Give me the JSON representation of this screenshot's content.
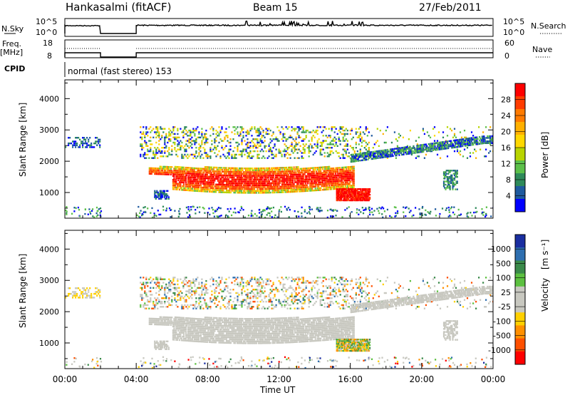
{
  "header": {
    "station": "Hankasalmi (fitACF)",
    "beam": "Beam 15",
    "date": "27/Feb/2011"
  },
  "strips": {
    "noise": {
      "left_label": "N.Sky",
      "left_ticks": [
        "10^5",
        "10^0"
      ],
      "right_label": "N.Search",
      "right_ticks": [
        "10^5",
        "10^0"
      ]
    },
    "freq": {
      "left_label_1": "Freq.",
      "left_label_2": "[MHz]",
      "left_ticks": [
        "18",
        "8"
      ],
      "right_label": "Nave",
      "right_ticks": [
        "60",
        "0"
      ]
    },
    "cpid": {
      "label": "CPID",
      "mode_text": "normal (fast stereo) 153"
    }
  },
  "colorbars": {
    "power": {
      "label": "Power [dB]",
      "ticks": [
        "28",
        "24",
        "20",
        "16",
        "12",
        "8",
        "4"
      ],
      "colors": [
        "#ff0000",
        "#ff3c00",
        "#ff7a00",
        "#ffb000",
        "#ffd800",
        "#b8d400",
        "#5cc04a",
        "#2e8a5a",
        "#1e5a9e",
        "#0000ff"
      ]
    },
    "velocity": {
      "label_main": "Velocity",
      "label_units": "[m s⁻¹]",
      "ticks": [
        "1000",
        "500",
        "100",
        "25",
        "-25",
        "-100",
        "-500",
        "-1000"
      ],
      "colors": [
        "#1a2ea0",
        "#2e6fb0",
        "#3a8a4a",
        "#5cc040",
        "#c8c8c0",
        "#c8c8c0",
        "#ffd000",
        "#ff9000",
        "#ff5000",
        "#ff0000"
      ]
    }
  },
  "chart_data": {
    "type": "heatmap",
    "xlabel": "Time UT",
    "ylabel": "Slant Range [km]",
    "x_ticks": [
      "00:00",
      "04:00",
      "08:00",
      "12:00",
      "16:00",
      "20:00",
      "00:00"
    ],
    "y_ticks": [
      "4000",
      "3000",
      "2000",
      "1000"
    ],
    "xlim_hours": [
      0,
      24
    ],
    "ylim_km": [
      180,
      4600
    ],
    "data_gap_hours": [
      2,
      4
    ],
    "panels": [
      "Power [dB]",
      "Velocity [m s⁻¹]"
    ]
  }
}
